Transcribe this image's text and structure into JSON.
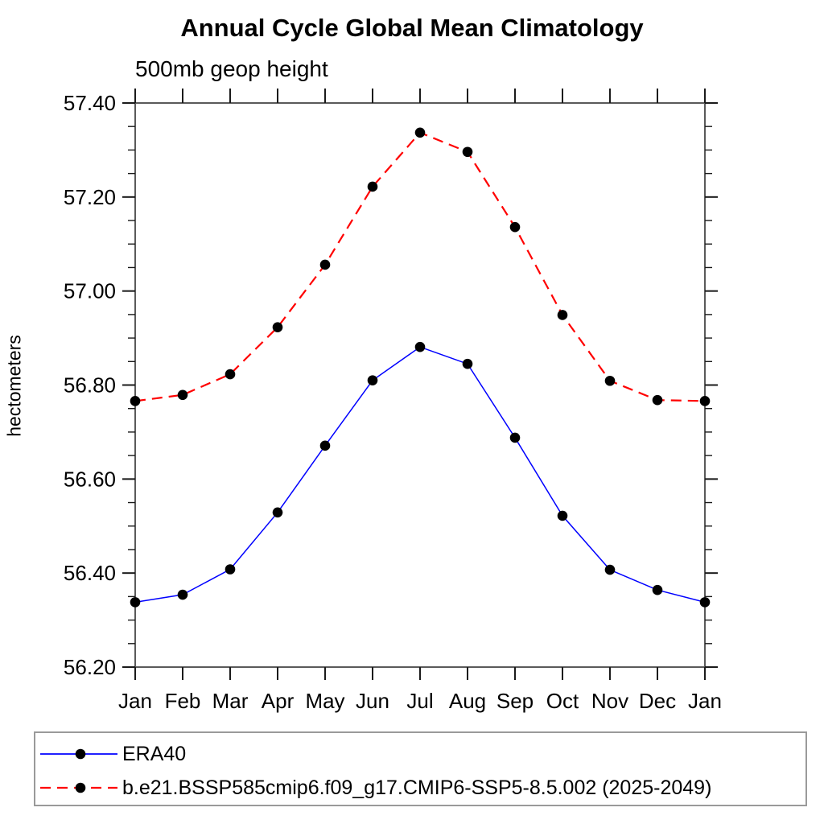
{
  "header": {
    "title": "Annual Cycle Global Mean Climatology",
    "subtitle": "500mb geop height"
  },
  "chart_data": {
    "type": "line",
    "title": "Annual Cycle Global Mean Climatology",
    "subtitle": "500mb geop height",
    "xlabel": "",
    "ylabel": "hectometers",
    "categories": [
      "Jan",
      "Feb",
      "Mar",
      "Apr",
      "May",
      "Jun",
      "Jul",
      "Aug",
      "Sep",
      "Oct",
      "Nov",
      "Dec",
      "Jan"
    ],
    "ylim": [
      56.2,
      57.4
    ],
    "ytick_values": [
      56.2,
      56.4,
      56.6,
      56.8,
      57.0,
      57.2,
      57.4
    ],
    "ytick_labels": [
      "56.20",
      "56.40",
      "56.60",
      "56.80",
      "57.00",
      "57.20",
      "57.40"
    ],
    "yminor_step": 0.05,
    "grid": false,
    "legend_position": "bottom-left boxed",
    "marker_color": "#000000",
    "series": [
      {
        "name": "ERA40",
        "color": "#0000ff",
        "line_style": "solid",
        "marker": "filled-circle",
        "values": [
          56.338,
          56.354,
          56.408,
          56.529,
          56.671,
          56.81,
          56.881,
          56.845,
          56.688,
          56.522,
          56.407,
          56.364,
          56.338
        ]
      },
      {
        "name": "b.e21.BSSP585cmip6.f09_g17.CMIP6-SSP5-8.5.002 (2025-2049)",
        "color": "#ff0000",
        "line_style": "dashed",
        "marker": "filled-circle",
        "values": [
          56.766,
          56.779,
          56.823,
          56.923,
          57.056,
          57.222,
          57.337,
          57.296,
          57.136,
          56.949,
          56.809,
          56.768,
          56.766
        ]
      }
    ]
  }
}
